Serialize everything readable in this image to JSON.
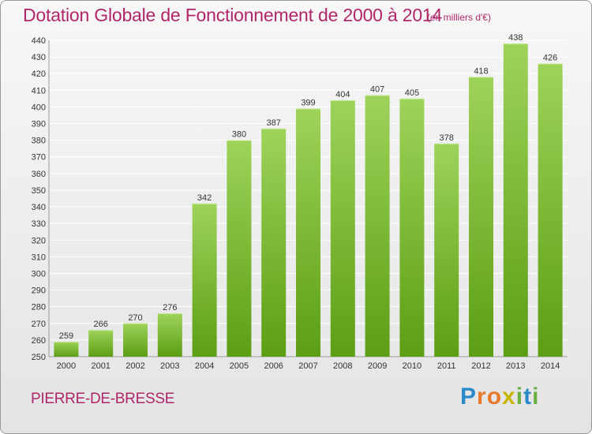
{
  "header": {
    "title": "Dotation Globale de Fonctionnement de 2000 à 2014",
    "unit_note": "(en milliers d'€)"
  },
  "footer": {
    "commune": "PIERRE-DE-BRESSE",
    "logo_letters": [
      "P",
      "r",
      "o",
      "x",
      "i",
      "t",
      "i"
    ],
    "logo_colors": [
      "#2d8ac9",
      "#e8792a",
      "#e8792a",
      "#c9b400",
      "#6ab040",
      "#2d8ac9",
      "#6ab040"
    ]
  },
  "colors": {
    "title": "#b0266a",
    "bar_top": "#9ed35a",
    "bar_bottom": "#5c9e14",
    "grid": "#ffffff"
  },
  "chart_data": {
    "type": "bar",
    "categories": [
      "2000",
      "2001",
      "2002",
      "2003",
      "2004",
      "2005",
      "2006",
      "2007",
      "2008",
      "2009",
      "2010",
      "2011",
      "2012",
      "2013",
      "2014"
    ],
    "values": [
      259,
      266,
      270,
      276,
      342,
      380,
      387,
      399,
      404,
      407,
      405,
      378,
      418,
      438,
      426
    ],
    "title": "Dotation Globale de Fonctionnement de 2000 à 2014",
    "subtitle": "(en milliers d'€)",
    "xlabel": "",
    "ylabel": "",
    "ylim": [
      250,
      440
    ],
    "ytick_step": 10,
    "grid": true,
    "data_labels": true
  }
}
